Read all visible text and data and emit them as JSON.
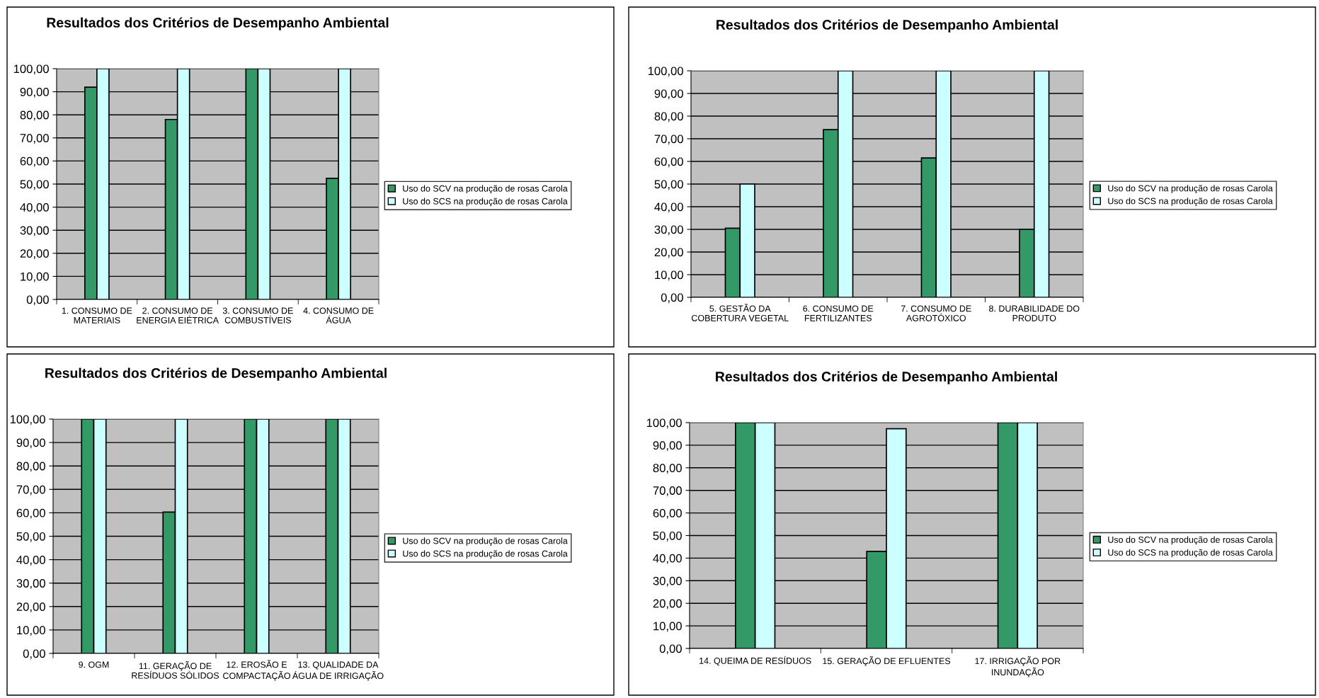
{
  "chart_data": [
    {
      "type": "bar",
      "title": "Resultados dos Critérios de Desempanho Ambiental",
      "categories": [
        "1. CONSUMO DE\nMATERIAIS",
        "2. CONSUMO DE\nENERGIA EIÉTRICA",
        "3. CONSUMO DE\nCOMBUSTÍVEIS",
        "4. CONSUMO DE\nÁGUA"
      ],
      "series": [
        {
          "name": "Uso do SCV na produção de rosas Carola",
          "color": "#339966",
          "values": [
            92,
            78,
            100,
            52.5
          ]
        },
        {
          "name": "Uso do SCS na produção de rosas Carola",
          "color": "#ccffff",
          "values": [
            100,
            100,
            100,
            100
          ]
        }
      ],
      "ylim": [
        0,
        100
      ],
      "yticks": [
        {
          "value": 0,
          "label": "0,00"
        },
        {
          "value": 10,
          "label": "10,00"
        },
        {
          "value": 20,
          "label": "20,00"
        },
        {
          "value": 30,
          "label": "30,00"
        },
        {
          "value": 40,
          "label": "40,00"
        },
        {
          "value": 50,
          "label": "50,00"
        },
        {
          "value": 60,
          "label": "60,00"
        },
        {
          "value": 70,
          "label": "70,00"
        },
        {
          "value": 80,
          "label": "80,00"
        },
        {
          "value": 90,
          "label": "90,00"
        },
        {
          "value": 100,
          "label": "100,00"
        }
      ],
      "grid": "y",
      "legend": "right"
    },
    {
      "type": "bar",
      "title": "Resultados dos Critérios de Desempanho Ambiental",
      "categories": [
        "5. GESTÃO DA\nCOBERTURA VEGETAL",
        "6. CONSUMO DE\nFERTILIZANTES",
        "7. CONSUMO DE\nAGROTÓXICO",
        "8. DURABILIDADE DO\nPRODUTO"
      ],
      "series": [
        {
          "name": "Uso do SCV na produção de rosas Carola",
          "color": "#339966",
          "values": [
            30.5,
            74,
            61.5,
            30
          ]
        },
        {
          "name": "Uso do SCS na produção de rosas Carola",
          "color": "#ccffff",
          "values": [
            50,
            100,
            100,
            100
          ]
        }
      ],
      "ylim": [
        0,
        100
      ],
      "yticks": [
        {
          "value": 0,
          "label": "0,00"
        },
        {
          "value": 10,
          "label": "10,00"
        },
        {
          "value": 20,
          "label": "20,00"
        },
        {
          "value": 30,
          "label": "30,00"
        },
        {
          "value": 40,
          "label": "40,00"
        },
        {
          "value": 50,
          "label": "50,00"
        },
        {
          "value": 60,
          "label": "60,00"
        },
        {
          "value": 70,
          "label": "70,00"
        },
        {
          "value": 80,
          "label": "80,00"
        },
        {
          "value": 90,
          "label": "90,00"
        },
        {
          "value": 100,
          "label": "100,00"
        }
      ],
      "grid": "y",
      "legend": "right"
    },
    {
      "type": "bar",
      "title": "Resultados dos Critérios de Desempanho Ambiental",
      "categories": [
        "9. OGM",
        "11. GERAÇÃO DE\nRESÍDUOS SÓLIDOS",
        "12. EROSÃO E\nCOMPACTAÇÃO",
        "13. QUALIDADE DA\nÁGUA DE IRRIGAÇÃO"
      ],
      "series": [
        {
          "name": "Uso do SCV na produção de rosas Carola",
          "color": "#339966",
          "values": [
            100,
            60.3,
            100,
            100
          ]
        },
        {
          "name": "Uso do SCS na produção de rosas Carola",
          "color": "#ccffff",
          "values": [
            100,
            100,
            100,
            100
          ]
        }
      ],
      "ylim": [
        0,
        100
      ],
      "yticks": [
        {
          "value": 0,
          "label": "0,00"
        },
        {
          "value": 10,
          "label": "10,00"
        },
        {
          "value": 20,
          "label": "20,00"
        },
        {
          "value": 30,
          "label": "30,00"
        },
        {
          "value": 40,
          "label": "40,00"
        },
        {
          "value": 50,
          "label": "50,00"
        },
        {
          "value": 60,
          "label": "60,00"
        },
        {
          "value": 70,
          "label": "70,00"
        },
        {
          "value": 80,
          "label": "80,00"
        },
        {
          "value": 90,
          "label": "90,00"
        },
        {
          "value": 100,
          "label": "100,00"
        }
      ],
      "grid": "y",
      "legend": "right"
    },
    {
      "type": "bar",
      "title": "Resultados dos Critérios de Desempanho Ambiental",
      "categories": [
        "14. QUEIMA DE RESÍDUOS",
        "15. GERAÇÃO DE EFLUENTES",
        "17. IRRIGAÇÃO POR\nINUNDAÇÃO"
      ],
      "series": [
        {
          "name": "Uso do SCV na produção de rosas Carola",
          "color": "#339966",
          "values": [
            100,
            43,
            100
          ]
        },
        {
          "name": "Uso do SCS na produção de rosas Carola",
          "color": "#ccffff",
          "values": [
            100,
            97.3,
            100
          ]
        }
      ],
      "ylim": [
        0,
        100
      ],
      "yticks": [
        {
          "value": 0,
          "label": "0,00"
        },
        {
          "value": 10,
          "label": "10,00"
        },
        {
          "value": 20,
          "label": "20,00"
        },
        {
          "value": 30,
          "label": "30,00"
        },
        {
          "value": 40,
          "label": "40,00"
        },
        {
          "value": 50,
          "label": "50,00"
        },
        {
          "value": 60,
          "label": "60,00"
        },
        {
          "value": 70,
          "label": "70,00"
        },
        {
          "value": 80,
          "label": "80,00"
        },
        {
          "value": 90,
          "label": "90,00"
        },
        {
          "value": 100,
          "label": "100,00"
        }
      ],
      "grid": "y",
      "legend": "right"
    }
  ]
}
